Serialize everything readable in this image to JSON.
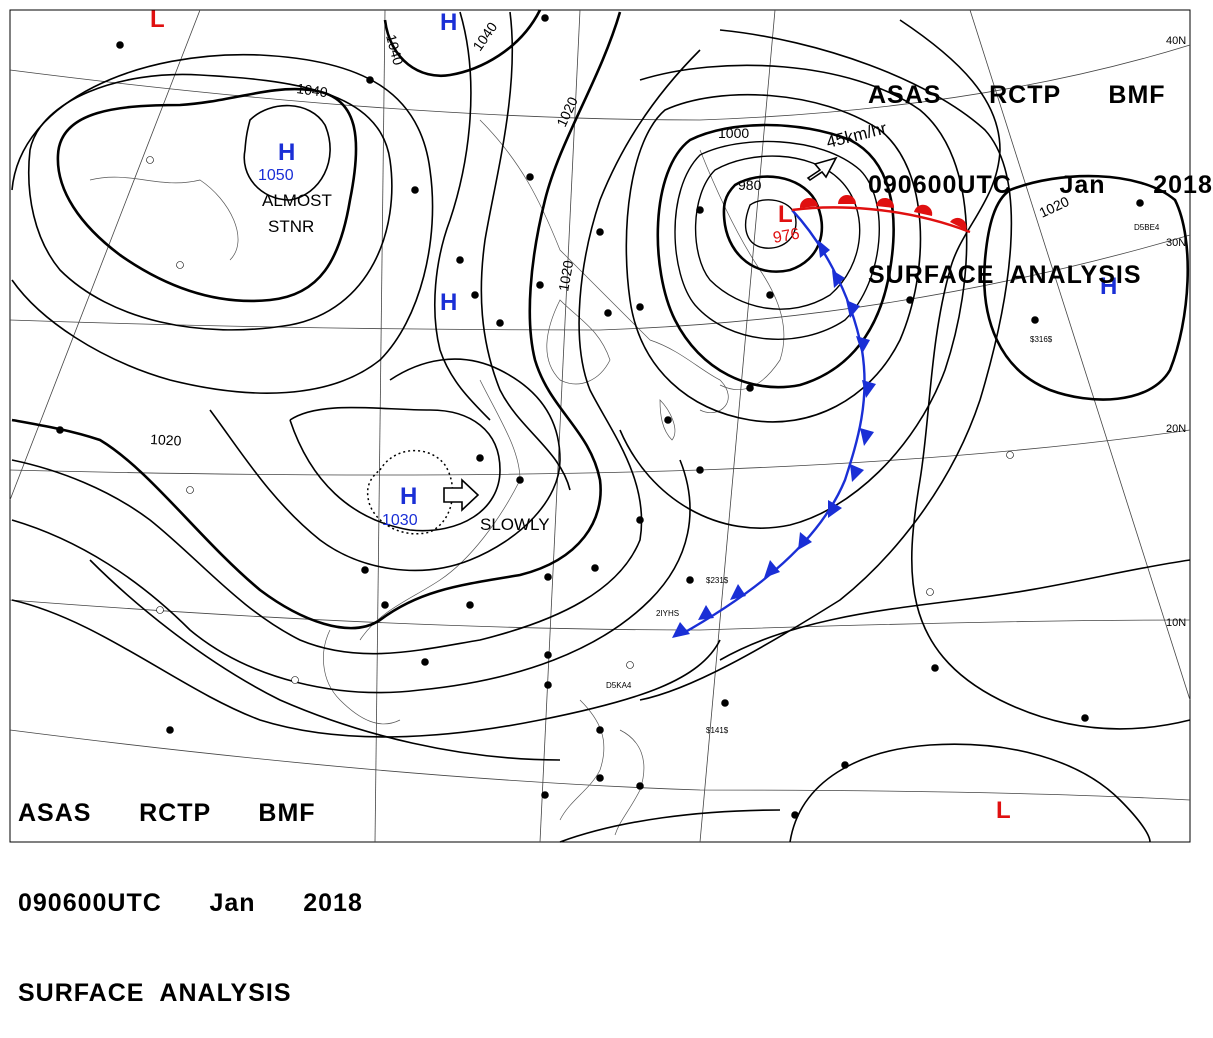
{
  "header_top": {
    "l1": "ASAS      RCTP      BMF",
    "l2": "090600UTC      Jan      2018",
    "l3": "SURFACE  ANALYSIS"
  },
  "header_bottom": {
    "l1": "ASAS      RCTP      BMF",
    "l2": "090600UTC      Jan      2018",
    "l3": "SURFACE  ANALYSIS"
  },
  "colors": {
    "high": "#1a2fd6",
    "low": "#e01010",
    "front_cold": "#1a2fd6",
    "front_warm": "#e01010"
  },
  "latitudes": [
    "40N",
    "30N",
    "20N",
    "10N"
  ],
  "isobars": [
    "1040",
    "1040",
    "1040",
    "1020",
    "1020",
    "1000",
    "980",
    "1020",
    "1020"
  ],
  "centers": {
    "high_mongolia": {
      "symbol": "H",
      "value": "1050"
    },
    "high_north": {
      "symbol": "H"
    },
    "high_china": {
      "symbol": "H"
    },
    "high_south": {
      "symbol": "H",
      "value": "1030"
    },
    "high_pacific": {
      "symbol": "H"
    },
    "low_main": {
      "symbol": "L",
      "value": "976"
    },
    "low_nw": {
      "symbol": "L"
    },
    "low_se": {
      "symbol": "L"
    }
  },
  "annotations": {
    "almost": "ALMOST",
    "stnr": "STNR",
    "slowly": "SLOWLY",
    "speed": "45km/hr"
  },
  "station_labels": [
    "D5KA4",
    "D5BE4",
    "2IYHS",
    "$231$",
    "$141$",
    "$316$"
  ]
}
